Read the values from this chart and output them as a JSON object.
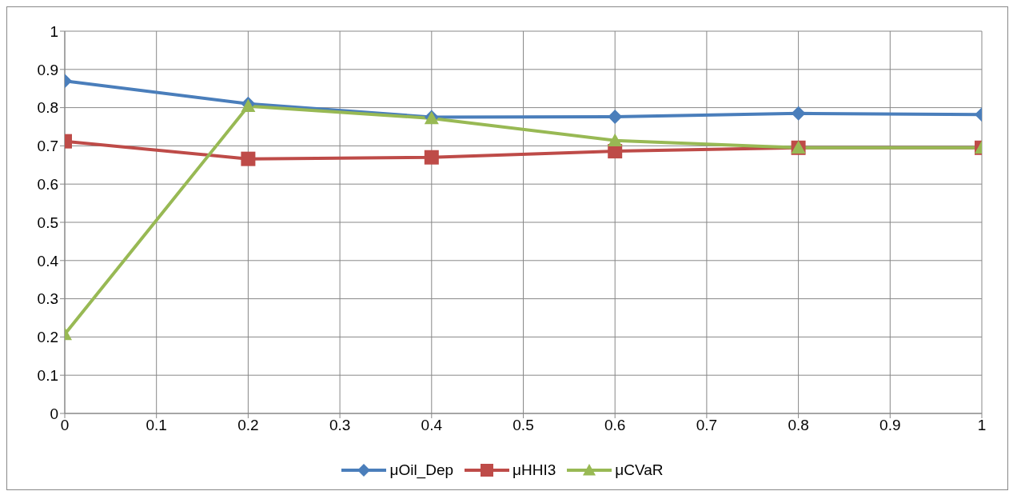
{
  "chart_data": {
    "type": "line",
    "x": [
      0,
      0.2,
      0.4,
      0.6,
      0.8,
      1
    ],
    "series": [
      {
        "name": "μOil_Dep",
        "color": "#4a7ebb",
        "marker": "diamond",
        "values": [
          0.87,
          0.81,
          0.775,
          0.776,
          0.785,
          0.782
        ]
      },
      {
        "name": "μHHI3",
        "color": "#be4b48",
        "marker": "square",
        "values": [
          0.712,
          0.666,
          0.67,
          0.686,
          0.695,
          0.695
        ]
      },
      {
        "name": "μCVaR",
        "color": "#98b954",
        "marker": "triangle",
        "values": [
          0.207,
          0.804,
          0.772,
          0.714,
          0.695,
          0.695
        ]
      }
    ],
    "xlim": [
      0,
      1
    ],
    "xticks": [
      0,
      0.1,
      0.2,
      0.3,
      0.4,
      0.5,
      0.6,
      0.7,
      0.8,
      0.9,
      1
    ],
    "ylim": [
      0,
      1
    ],
    "yticks": [
      0,
      0.1,
      0.2,
      0.3,
      0.4,
      0.5,
      0.6,
      0.7,
      0.8,
      0.9,
      1
    ],
    "grid": true,
    "legend": "bottom",
    "line_style": "solid"
  }
}
